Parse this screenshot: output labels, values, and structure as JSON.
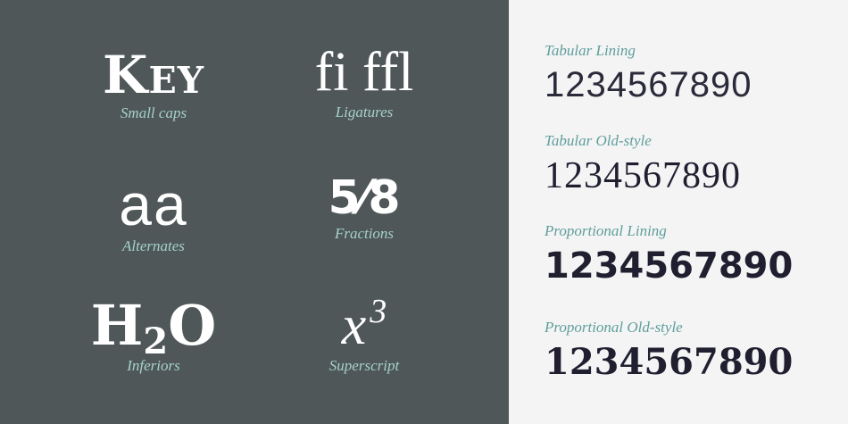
{
  "features": [
    {
      "sample": "Key",
      "caption": "Small caps"
    },
    {
      "sample": "fi ffl",
      "caption": "Ligatures"
    },
    {
      "sample": "aa",
      "caption": "Alternates"
    },
    {
      "sample_num": "5",
      "sample_den": "8",
      "caption": "Fractions"
    },
    {
      "sample_base": "H",
      "sample_sub": "2",
      "sample_end": "O",
      "caption": "Inferiors"
    },
    {
      "sample_base": "x",
      "sample_sup": "3",
      "caption": "Superscript"
    }
  ],
  "numerals": [
    {
      "label": "Tabular Lining",
      "digits": "1234567890"
    },
    {
      "label": "Tabular Old-style",
      "digits": "1234567890"
    },
    {
      "label": "Proportional Lining",
      "digits": "1234567890"
    },
    {
      "label": "Proportional Old-style",
      "digits": "1234567890"
    }
  ],
  "colors": {
    "left_bg": "#4f5759",
    "right_bg": "#f4f4f5",
    "caption": "#a6d2cb",
    "label": "#5e9e9b",
    "digits": "#1f1f30"
  }
}
